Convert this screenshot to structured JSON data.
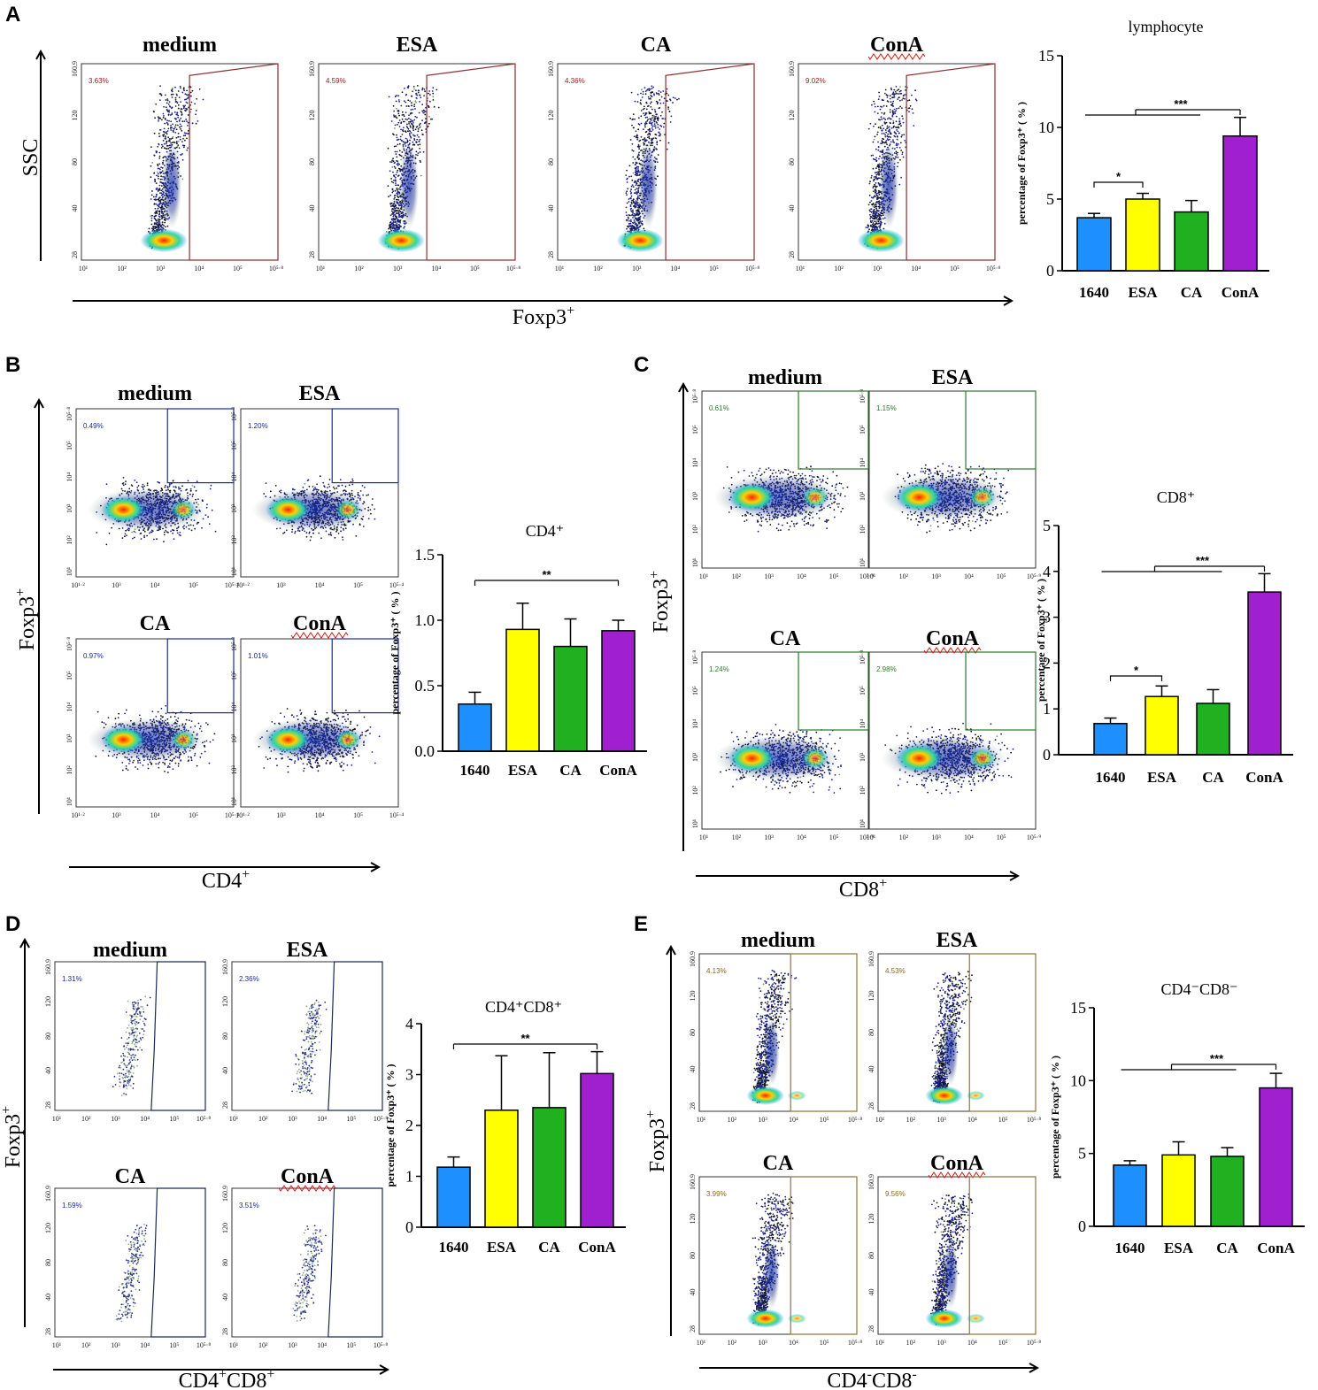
{
  "panels": {
    "A": {
      "label": "A",
      "x_axis": "Foxp3",
      "x_axis_sup": "+",
      "y_axis": "SSC"
    },
    "B": {
      "label": "B",
      "x_axis": "CD4",
      "x_axis_sup": "+",
      "y_axis": "Foxp3",
      "y_axis_sup": "+"
    },
    "C": {
      "label": "C",
      "x_axis": "CD8",
      "x_axis_sup": "+",
      "y_axis": "Foxp3",
      "y_axis_sup": "+"
    },
    "D": {
      "label": "D",
      "x_axis_parts": [
        "CD4",
        "+",
        "CD8",
        "+"
      ],
      "y_axis": "Foxp3",
      "y_axis_sup": "+"
    },
    "E": {
      "label": "E",
      "x_axis_parts": [
        "CD4",
        "-",
        "CD8",
        "-"
      ],
      "y_axis": "Foxp3",
      "y_axis_sup": "+"
    }
  },
  "facs_plots": {
    "A": [
      {
        "title": "medium",
        "percent": "3.63%"
      },
      {
        "title": "ESA",
        "percent": "4.59%"
      },
      {
        "title": "CA",
        "percent": "4.36%"
      },
      {
        "title": "ConA",
        "percent": "9.02%"
      }
    ],
    "B": [
      {
        "title": "medium",
        "percent": "0.49%"
      },
      {
        "title": "ESA",
        "percent": "1.20%"
      },
      {
        "title": "CA",
        "percent": "0.97%"
      },
      {
        "title": "ConA",
        "percent": "1.01%"
      }
    ],
    "C": [
      {
        "title": "medium",
        "percent": "0.61%"
      },
      {
        "title": "ESA",
        "percent": "1.15%"
      },
      {
        "title": "CA",
        "percent": "1.24%"
      },
      {
        "title": "ConA",
        "percent": "2.98%"
      }
    ],
    "D": [
      {
        "title": "medium",
        "percent": "1.31%"
      },
      {
        "title": "ESA",
        "percent": "2.36%"
      },
      {
        "title": "CA",
        "percent": "1.59%"
      },
      {
        "title": "ConA",
        "percent": "3.51%"
      }
    ],
    "E": [
      {
        "title": "medium",
        "percent": "4.13%"
      },
      {
        "title": "ESA",
        "percent": "4.53%"
      },
      {
        "title": "CA",
        "percent": "3.99%"
      },
      {
        "title": "ConA",
        "percent": "9.56%"
      }
    ]
  },
  "facs_ticks": {
    "ssc_y": [
      "160.9",
      "120",
      "80",
      "40",
      "28"
    ],
    "log_x": [
      "10¹",
      "10²",
      "10³",
      "10⁴",
      "10⁵",
      "10⁵·⁸"
    ],
    "b_x": [
      "10¹·²",
      "10³",
      "10⁴",
      "10⁵",
      "10⁵·⁴"
    ],
    "b_y": [
      "10⁵·⁸",
      "10⁵",
      "10⁴",
      "10³",
      "10²",
      "10¹"
    ],
    "c_x": [
      "10¹",
      "10²",
      "10³",
      "10⁴",
      "10⁵",
      "10⁵·⁹"
    ],
    "c_y": [
      "10⁵·⁸",
      "10⁵",
      "10⁴",
      "10³",
      "10²",
      "10¹"
    ]
  },
  "chart_data": [
    {
      "panel": "A",
      "type": "bar",
      "title": "lymphocyte",
      "ylabel": "percentage of Foxp3⁺ ( % )",
      "categories": [
        "1640",
        "ESA",
        "CA",
        "ConA"
      ],
      "values": [
        3.7,
        5.0,
        4.1,
        9.4
      ],
      "errors": [
        0.3,
        0.4,
        0.8,
        1.3
      ],
      "ylim": [
        0,
        15
      ],
      "yticks": [
        0,
        5,
        10,
        15
      ],
      "colors": [
        "#1e8fff",
        "#ffff00",
        "#20b020",
        "#a020d0"
      ],
      "significance": [
        {
          "from": 0,
          "to": 1,
          "label": "*"
        },
        {
          "from": 0,
          "to": 3,
          "label": "***"
        }
      ]
    },
    {
      "panel": "B",
      "type": "bar",
      "title": "CD4⁺",
      "ylabel": "percentage of Foxp3⁺ ( % )",
      "categories": [
        "1640",
        "ESA",
        "CA",
        "ConA"
      ],
      "values": [
        0.36,
        0.93,
        0.8,
        0.92
      ],
      "errors": [
        0.09,
        0.2,
        0.21,
        0.08
      ],
      "ylim": [
        0,
        1.5
      ],
      "yticks": [
        0.0,
        0.5,
        1.0,
        1.5
      ],
      "colors": [
        "#1e8fff",
        "#ffff00",
        "#20b020",
        "#a020d0"
      ],
      "significance": [
        {
          "from": 0,
          "to": 3,
          "label": "**"
        }
      ]
    },
    {
      "panel": "C",
      "type": "bar",
      "title": "CD8⁺",
      "ylabel": "percentage of Foxp3⁺ ( % )",
      "categories": [
        "1640",
        "ESA",
        "CA",
        "ConA"
      ],
      "values": [
        0.68,
        1.27,
        1.12,
        3.55
      ],
      "errors": [
        0.12,
        0.23,
        0.3,
        0.4
      ],
      "ylim": [
        0,
        5
      ],
      "yticks": [
        0,
        1,
        2,
        3,
        4,
        5
      ],
      "colors": [
        "#1e8fff",
        "#ffff00",
        "#20b020",
        "#a020d0"
      ],
      "significance": [
        {
          "from": 0,
          "to": 1,
          "label": "*"
        },
        {
          "from": 0,
          "to": 3,
          "label": "***"
        }
      ]
    },
    {
      "panel": "D",
      "type": "bar",
      "title": "CD4⁺CD8⁺",
      "ylabel": "percentage of Foxp3⁺ ( % )",
      "categories": [
        "1640",
        "ESA",
        "CA",
        "ConA"
      ],
      "values": [
        1.18,
        2.3,
        2.35,
        3.02
      ],
      "errors": [
        0.2,
        1.07,
        1.08,
        0.43
      ],
      "ylim": [
        0,
        4
      ],
      "yticks": [
        0,
        1,
        2,
        3,
        4
      ],
      "colors": [
        "#1e8fff",
        "#ffff00",
        "#20b020",
        "#a020d0"
      ],
      "significance": [
        {
          "from": 0,
          "to": 3,
          "label": "**"
        }
      ]
    },
    {
      "panel": "E",
      "type": "bar",
      "title": "CD4⁻CD8⁻",
      "ylabel": "percentage of Foxp3⁺ ( % )",
      "categories": [
        "1640",
        "ESA",
        "CA",
        "ConA"
      ],
      "values": [
        4.2,
        4.9,
        4.8,
        9.5
      ],
      "errors": [
        0.3,
        0.9,
        0.6,
        1.0
      ],
      "ylim": [
        0,
        15
      ],
      "yticks": [
        0,
        5,
        10,
        15
      ],
      "colors": [
        "#1e8fff",
        "#ffff00",
        "#20b020",
        "#a020d0"
      ],
      "significance": [
        {
          "from": 0,
          "to": 3,
          "label": "***"
        }
      ]
    }
  ]
}
